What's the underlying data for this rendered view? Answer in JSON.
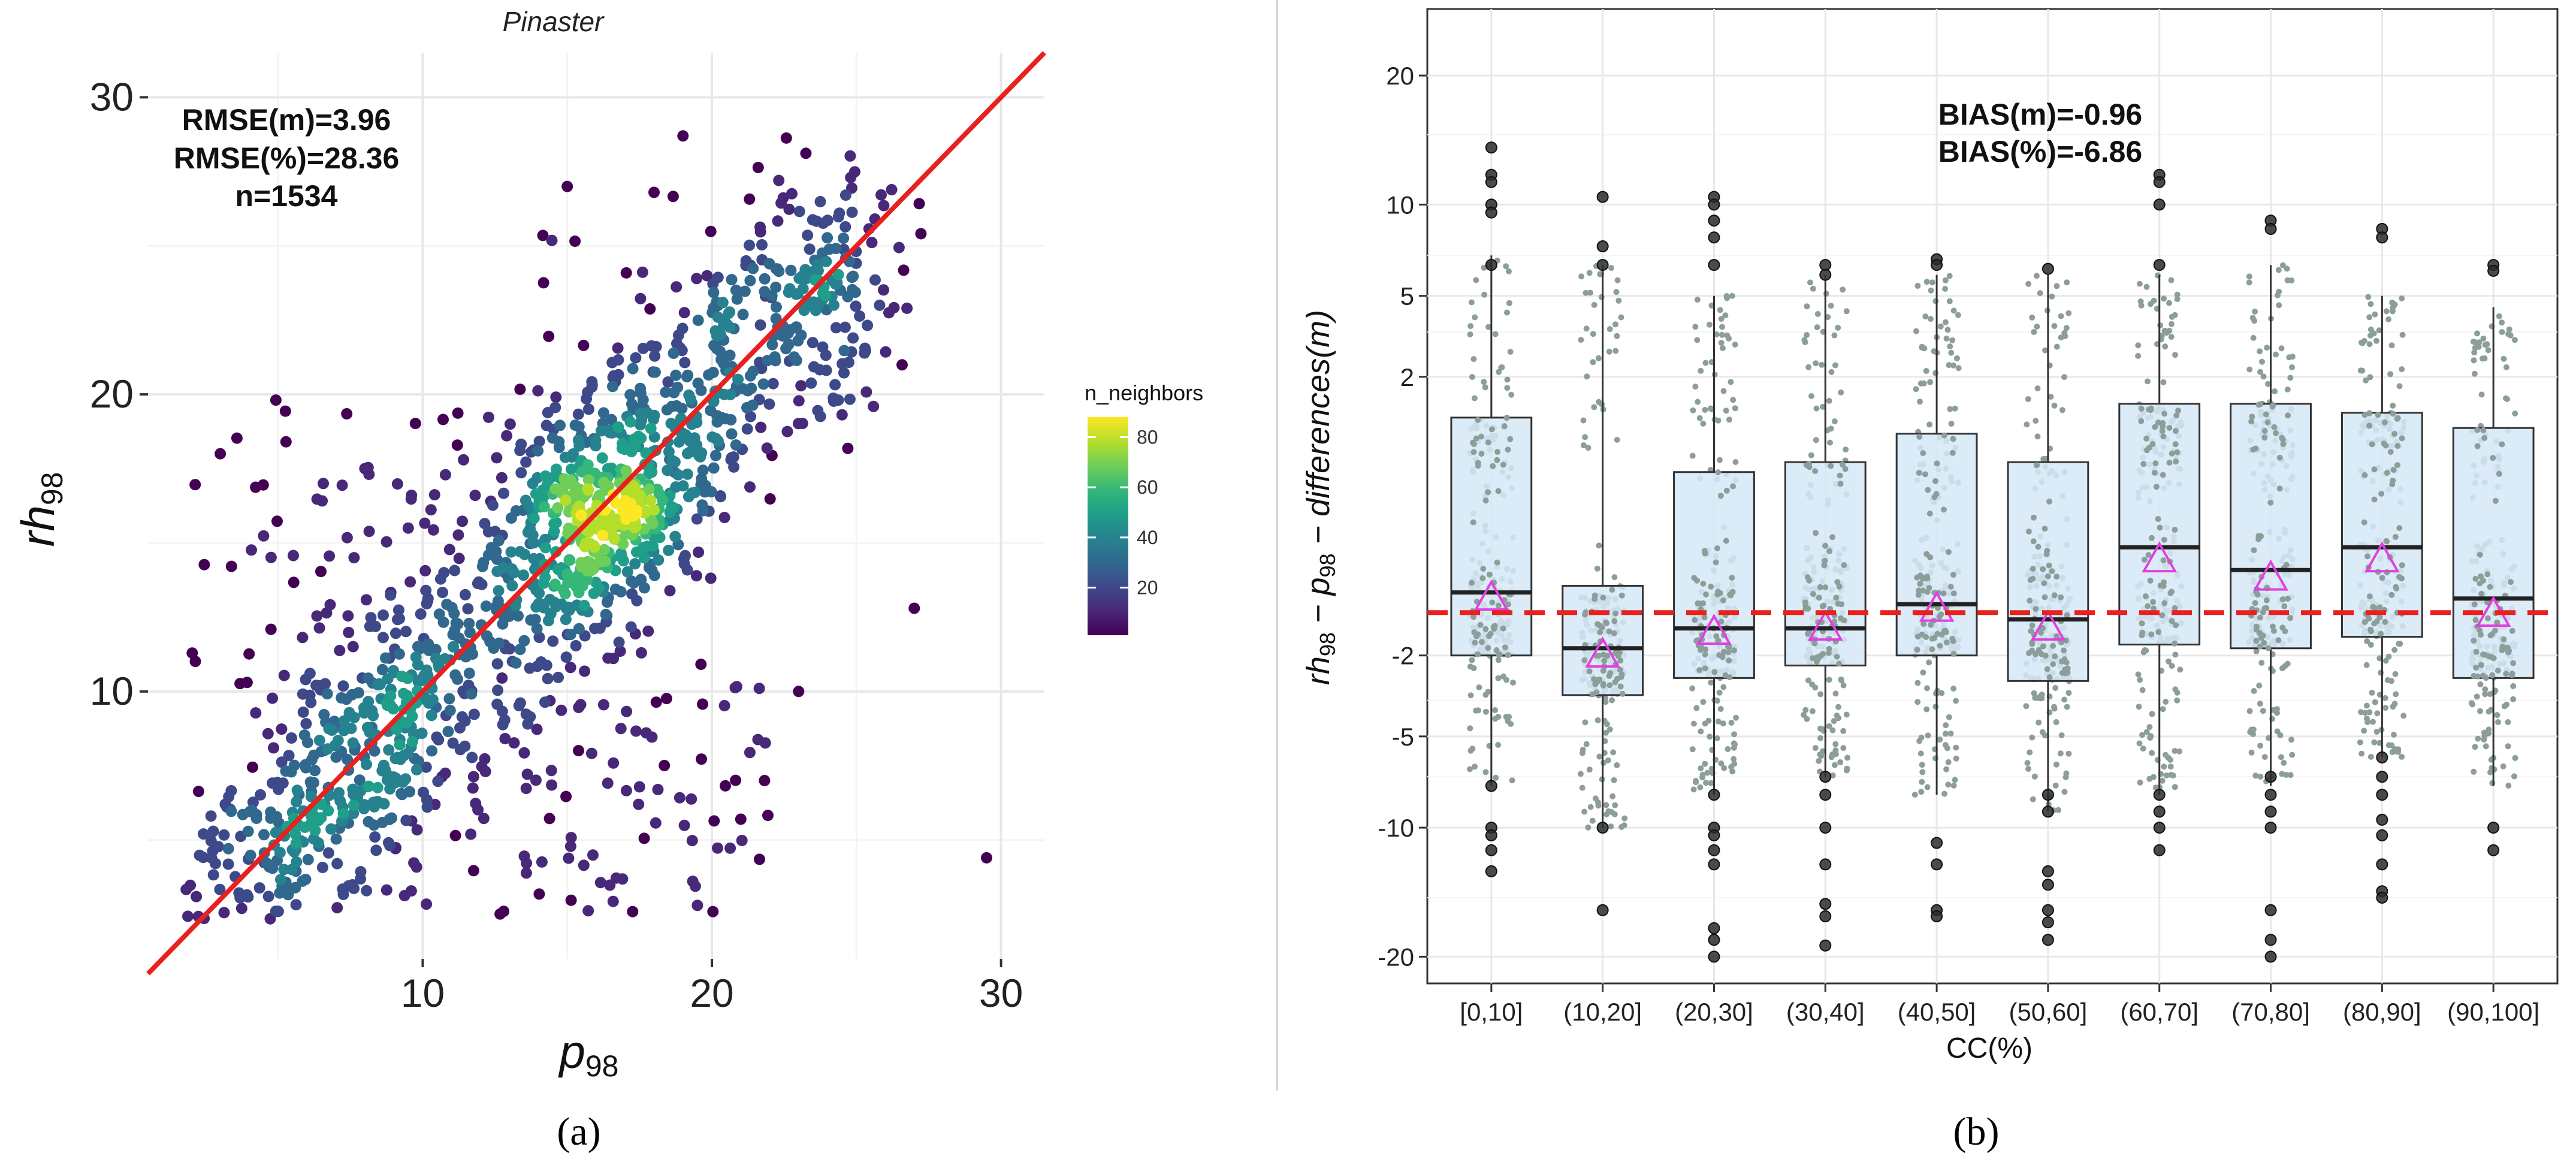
{
  "colors": {
    "panel_bg": "#ffffff",
    "grid_major": "#e8e8e8",
    "grid_minor": "#f4f4f4",
    "axis_frame": "#333333",
    "identity_line": "#e8201e",
    "viridis": [
      "#440154",
      "#482878",
      "#3e4989",
      "#31688e",
      "#26828e",
      "#1f9e89",
      "#35b779",
      "#6ece58",
      "#b5de2b",
      "#fde725"
    ],
    "box_fill": "#d6e8f7",
    "box_outline": "#333333",
    "jitter_points": "#8c9e99",
    "outlier_points": "#2b2b2b",
    "mean_marker": "#e040e0",
    "bias_line": "#e8201e"
  },
  "panel_a": {
    "caption": "(a)",
    "title": "Pinaster",
    "xlabel_main": "p",
    "xlabel_sub": "98",
    "ylabel_main": "rh",
    "ylabel_sub": "98",
    "stats": [
      "RMSE(m)=3.96",
      "RMSE(%)=28.36",
      "n=1534"
    ],
    "legend_title": "n_neighbors",
    "legend_ticks": [
      "80",
      "60",
      "40",
      "20"
    ]
  },
  "panel_b": {
    "caption": "(b)",
    "xlabel": "CC(%)",
    "ylabel": "rh98 − p98 − differences(m)",
    "bias": [
      "BIAS(m)=-0.96",
      "BIAS(%)=-6.86"
    ]
  },
  "chart_data": [
    {
      "type": "scatter",
      "title": "Pinaster",
      "xlabel": "p98",
      "ylabel": "rh98",
      "xlim": [
        0.5,
        31.5
      ],
      "ylim": [
        1,
        31.5
      ],
      "xticks": [
        10,
        20,
        30
      ],
      "yticks": [
        10,
        20,
        30
      ],
      "grid": true,
      "legend": "right",
      "color_scale": {
        "name": "n_neighbors",
        "min": 1,
        "max": 88,
        "ticks": [
          20,
          40,
          60,
          80
        ]
      },
      "identity_line": {
        "x": [
          0.5,
          31.5
        ],
        "y": [
          0.5,
          31.5
        ]
      },
      "n_points": 1534,
      "rmse_m": 3.96,
      "rmse_pct": 28.36,
      "points_sample": [
        {
          "x": 29.5,
          "y": 4.4
        },
        {
          "x": 27.0,
          "y": 12.8
        },
        {
          "x": 25.8,
          "y": 23.0
        },
        {
          "x": 24.8,
          "y": 27.3
        },
        {
          "x": 19.0,
          "y": 28.7
        },
        {
          "x": 18.0,
          "y": 26.8
        },
        {
          "x": 15.0,
          "y": 27.0
        },
        {
          "x": 3.0,
          "y": 18.0
        },
        {
          "x": 9.5,
          "y": 15.5
        },
        {
          "x": 8.0,
          "y": 17.5
        },
        {
          "x": 23.0,
          "y": 10.0
        },
        {
          "x": 21.0,
          "y": 5.7
        },
        {
          "x": 12.8,
          "y": 2.6
        },
        {
          "x": 19.5,
          "y": 2.8
        },
        {
          "x": 16.3,
          "y": 16.1
        },
        {
          "x": 6.5,
          "y": 6.2
        }
      ],
      "density_center": {
        "x": 16.3,
        "y": 16.1
      }
    },
    {
      "type": "box",
      "title": "",
      "xlabel": "CC(%)",
      "ylabel": "rh98 − p98 − differences(m)",
      "y_scale": "pseudo-log (signed square-root-like)",
      "yticks": [
        -20,
        -10,
        -5,
        -2,
        2,
        5,
        10,
        20
      ],
      "grid": true,
      "reference_line": -0.96,
      "bias_m": -0.96,
      "bias_pct": -6.86,
      "categories": [
        "[0,10]",
        "(10,20]",
        "(20,30]",
        "(30,40]",
        "(40,50]",
        "(50,60]",
        "(60,70]",
        "(70,80]",
        "(80,90]",
        "(90,100]"
      ],
      "series": [
        {
          "name": "",
          "q1": -2.0,
          "median": -0.6,
          "q3": 1.0,
          "whisker_low": -7.5,
          "whisker_high": 7.0,
          "mean": -0.7,
          "outliers": [
            14,
            12,
            11.5,
            10,
            9.5,
            6.5,
            -7.5,
            -10,
            -10.5,
            -11.5,
            -13
          ]
        },
        {
          "name": "",
          "q1": -3.3,
          "median": -1.8,
          "q3": -0.5,
          "whisker_low": -10,
          "whisker_high": 6.5,
          "mean": -2.0,
          "outliers": [
            10.5,
            7.5,
            6.5,
            -10,
            -16
          ]
        },
        {
          "name": "",
          "q1": -2.7,
          "median": -1.3,
          "q3": 0.2,
          "whisker_low": -8,
          "whisker_high": 5,
          "mean": -1.4,
          "outliers": [
            10.5,
            10,
            9,
            8,
            6.5,
            -8,
            -10,
            -10.5,
            -11.5,
            -12.5,
            -17.5,
            -18.5,
            -20
          ]
        },
        {
          "name": "",
          "q1": -2.3,
          "median": -1.3,
          "q3": 0.3,
          "whisker_low": -7,
          "whisker_high": 6,
          "mean": -1.3,
          "outliers": [
            6.5,
            6,
            -7,
            -8,
            -10,
            -12.5,
            -15.5,
            -16.5,
            -19
          ]
        },
        {
          "name": "",
          "q1": -2.0,
          "median": -0.8,
          "q3": 0.7,
          "whisker_low": -8,
          "whisker_high": 6,
          "mean": -0.9,
          "outliers": [
            6.8,
            6.5,
            -11,
            -12.5,
            -16,
            -16.5
          ]
        },
        {
          "name": "",
          "q1": -2.8,
          "median": -1.1,
          "q3": 0.3,
          "whisker_low": -9,
          "whisker_high": 6,
          "mean": -1.3,
          "outliers": [
            6.3,
            -8,
            -9,
            -13,
            -14,
            -16,
            -17,
            -18.5
          ]
        },
        {
          "name": "",
          "q1": -1.7,
          "median": -0.1,
          "q3": 1.3,
          "whisker_low": -8,
          "whisker_high": 6,
          "mean": -0.2,
          "outliers": [
            12,
            11.5,
            10,
            6.5,
            -8,
            -9,
            -10,
            -11.5
          ]
        },
        {
          "name": "",
          "q1": -1.8,
          "median": -0.3,
          "q3": 1.3,
          "whisker_low": -7.5,
          "whisker_high": 6.5,
          "mean": -0.4,
          "outliers": [
            9,
            8.5,
            -7,
            -8,
            -9,
            -10,
            -16,
            -18.5,
            -20
          ]
        },
        {
          "name": "",
          "q1": -1.5,
          "median": -0.1,
          "q3": 1.1,
          "whisker_low": -6,
          "whisker_high": 5,
          "mean": -0.2,
          "outliers": [
            8.5,
            8,
            -6,
            -7,
            -8,
            -9.5,
            -10.5,
            -12.5,
            -14.5,
            -15
          ]
        },
        {
          "name": "",
          "q1": -2.7,
          "median": -0.7,
          "q3": 0.8,
          "whisker_low": -7.5,
          "whisker_high": 4.5,
          "mean": -1.0,
          "outliers": [
            6.5,
            6.2,
            -10,
            -11.5
          ]
        }
      ]
    }
  ]
}
